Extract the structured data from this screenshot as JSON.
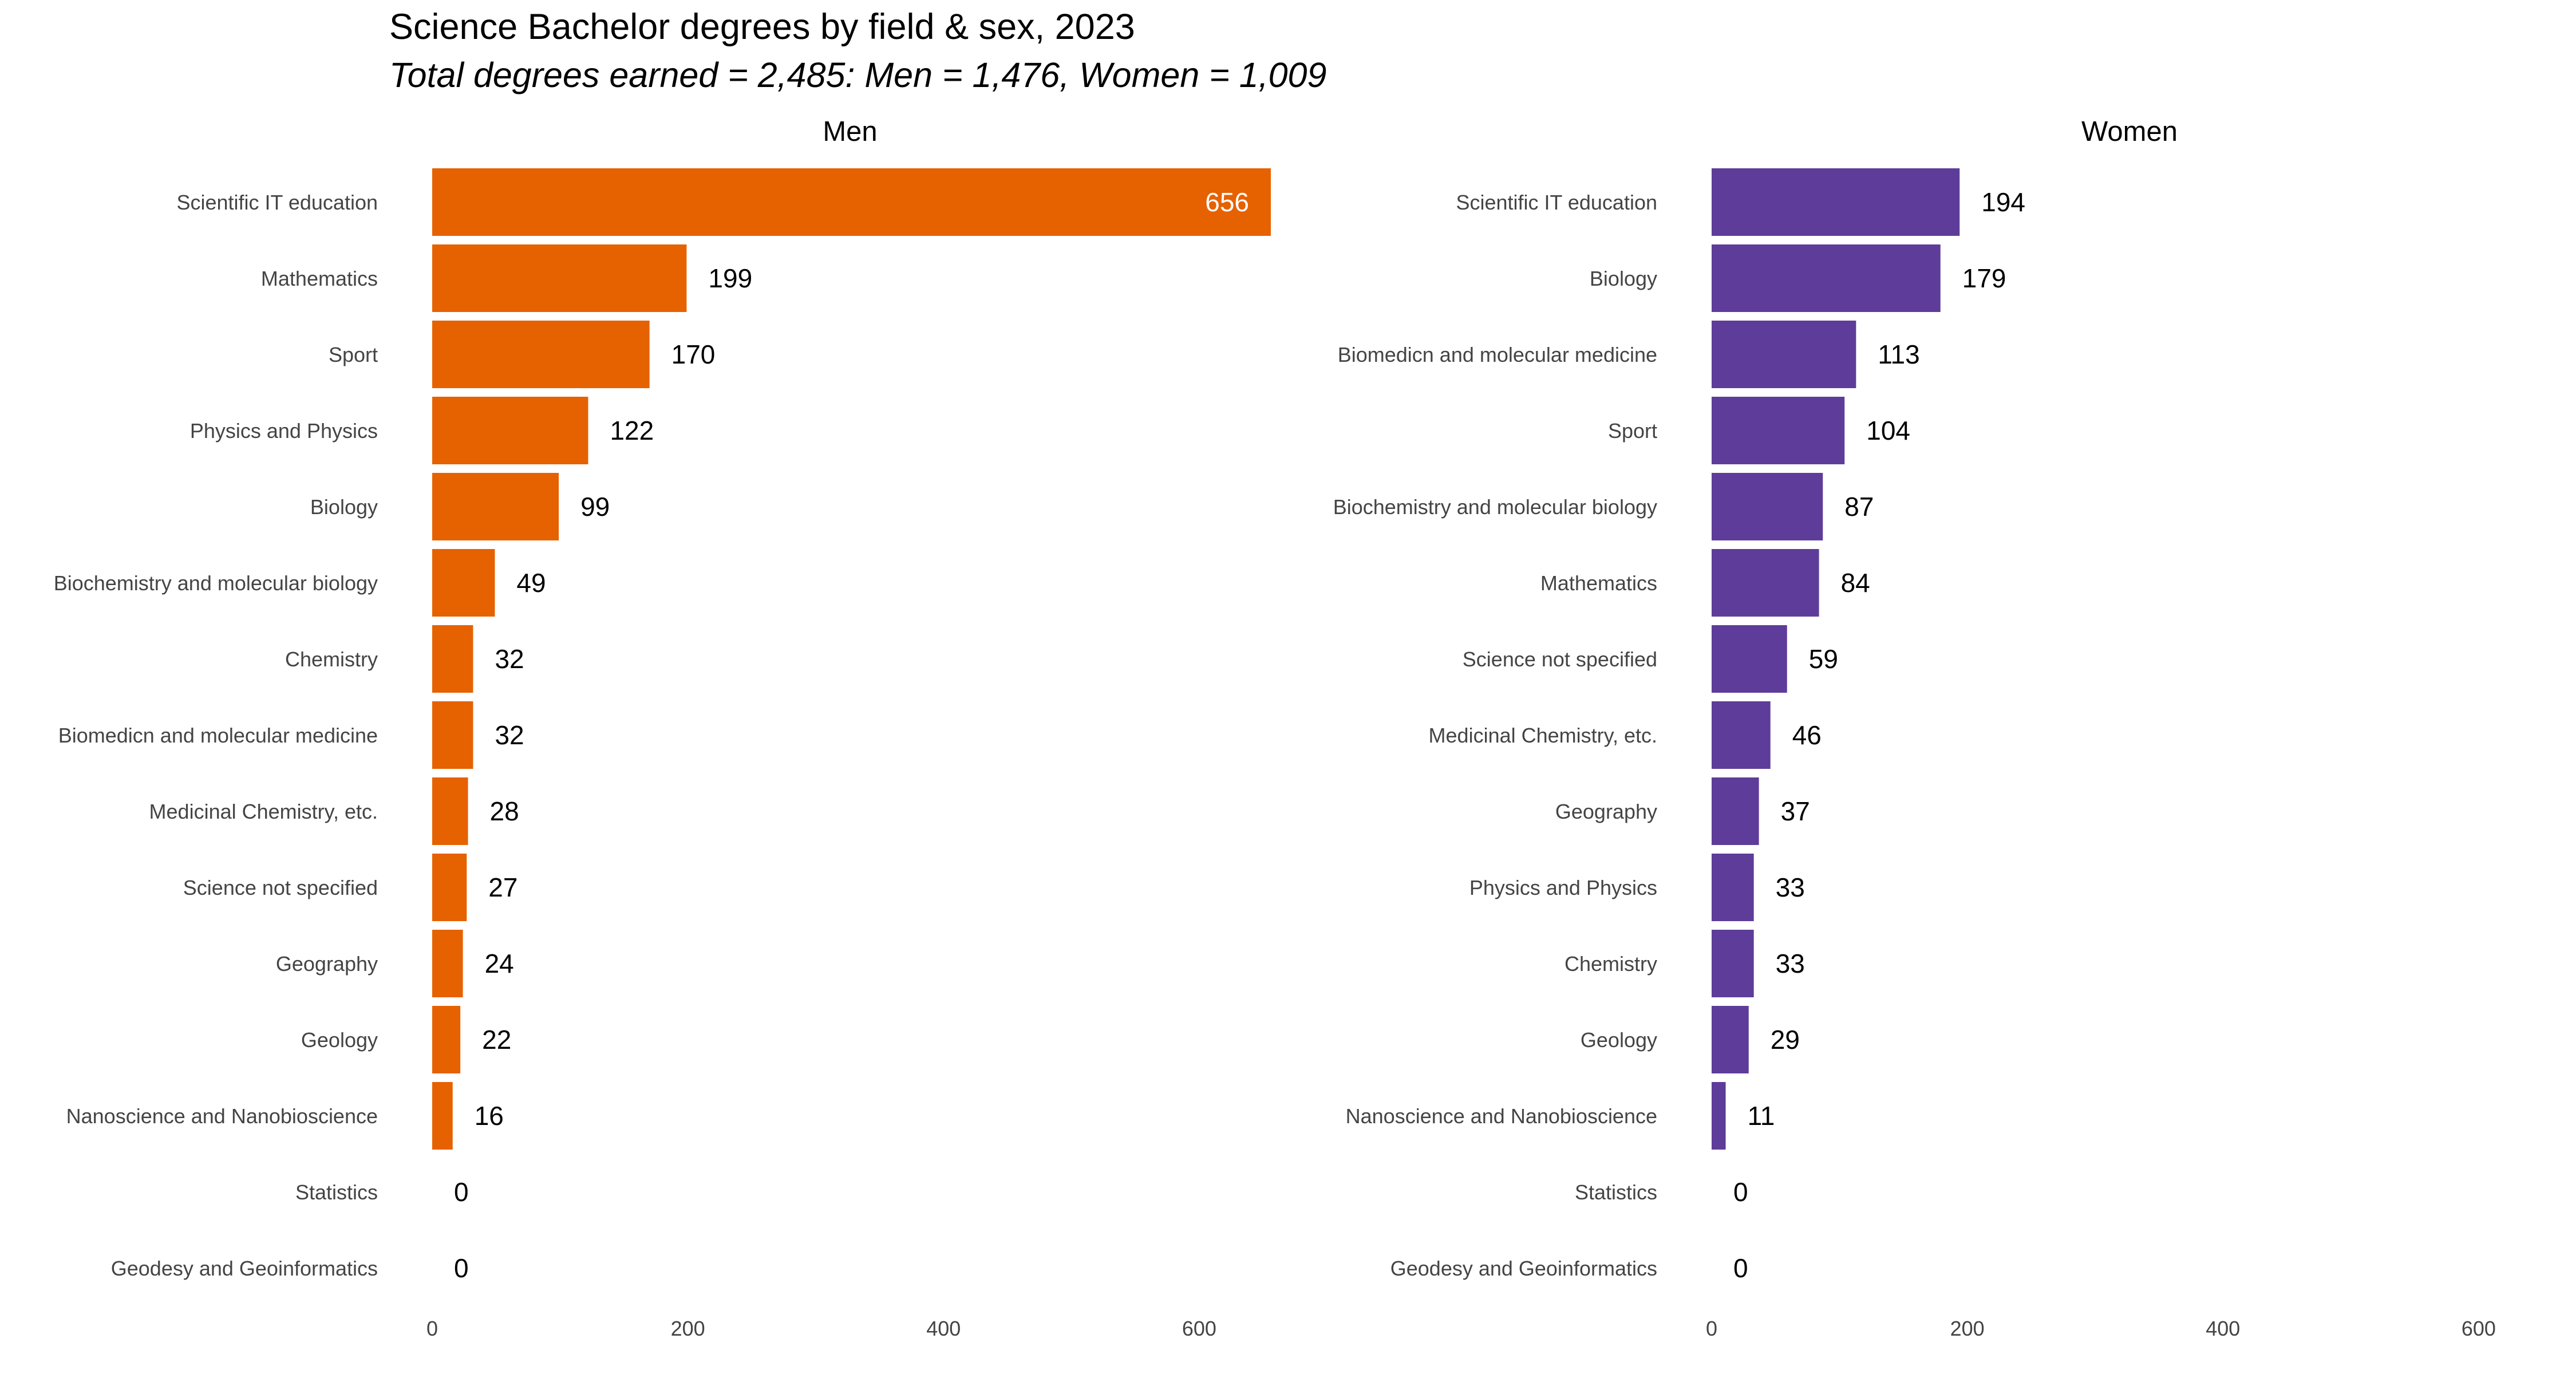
{
  "chart_data": {
    "type": "bar",
    "orientation": "horizontal",
    "title": "Science Bachelor degrees by field & sex, 2023",
    "subtitle": "Total degrees earned = 2,485: Men = 1,476, Women = 1,009",
    "grid": false,
    "panels": [
      {
        "name": "Men",
        "color": "#e66100",
        "xlim": [
          0,
          656
        ],
        "ticks": [
          0,
          200,
          400,
          600
        ],
        "categories": [
          "Scientific IT education",
          "Mathematics",
          "Sport",
          "Physics and Physics",
          "Biology",
          "Biochemistry and molecular biology",
          "Chemistry",
          "Biomedicn and molecular medicine",
          "Medicinal Chemistry, etc.",
          "Science not specified",
          "Geography",
          "Geology",
          "Nanoscience and Nanobioscience",
          "Statistics",
          "Geodesy and Geoinformatics"
        ],
        "values": [
          656,
          199,
          170,
          122,
          99,
          49,
          32,
          32,
          28,
          27,
          24,
          22,
          16,
          0,
          0
        ]
      },
      {
        "name": "Women",
        "color": "#5e3c99",
        "xlim": [
          0,
          656
        ],
        "ticks": [
          0,
          200,
          400,
          600
        ],
        "categories": [
          "Scientific IT education",
          "Biology",
          "Biomedicn and molecular medicine",
          "Sport",
          "Biochemistry and molecular biology",
          "Mathematics",
          "Science not specified",
          "Medicinal Chemistry, etc.",
          "Geography",
          "Physics and Physics",
          "Chemistry",
          "Geology",
          "Nanoscience and Nanobioscience",
          "Statistics",
          "Geodesy and Geoinformatics"
        ],
        "values": [
          194,
          179,
          113,
          104,
          87,
          84,
          59,
          46,
          37,
          33,
          33,
          29,
          11,
          0,
          0
        ]
      }
    ]
  }
}
